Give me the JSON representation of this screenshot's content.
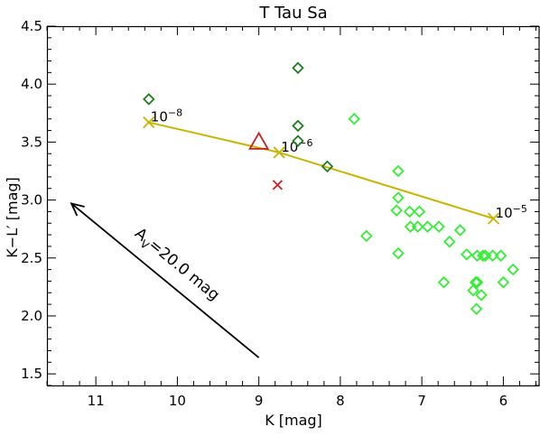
{
  "chart_data": {
    "type": "scatter",
    "title": "T Tau Sa",
    "xlabel": "K [mag]",
    "ylabel": "K−L′ [mag]",
    "xlim": [
      11.6,
      5.55
    ],
    "ylim": [
      1.4,
      4.5
    ],
    "x_axis_inverted": true,
    "x_ticks": [
      11,
      10,
      9,
      8,
      7,
      6
    ],
    "x_tick_labels": [
      "11",
      "10",
      "9",
      "8",
      "7",
      "6"
    ],
    "y_ticks": [
      1.5,
      2.0,
      2.5,
      3.0,
      3.5,
      4.0,
      4.5
    ],
    "y_tick_labels": [
      "1.5",
      "2.0",
      "2.5",
      "3.0",
      "3.5",
      "4.0",
      "4.5"
    ],
    "colors": {
      "dark_green": "#207a20",
      "bright_green": "#33ee33",
      "model_line": "#c8b400",
      "target_red": "#c82020",
      "axes": "#000000"
    },
    "model_track": {
      "x": [
        10.35,
        8.75,
        6.12
      ],
      "y": [
        3.67,
        3.41,
        2.84
      ],
      "labels": [
        {
          "base": "10",
          "exp": "−8"
        },
        {
          "base": "10",
          "exp": "−6"
        },
        {
          "base": "10",
          "exp": "−5"
        }
      ]
    },
    "dark_green_diamonds": {
      "x": [
        10.35,
        8.52,
        8.52,
        8.52,
        8.16
      ],
      "y": [
        3.87,
        4.14,
        3.64,
        3.51,
        3.29
      ]
    },
    "bright_green_diamonds": {
      "x": [
        7.83,
        7.29,
        7.29,
        7.31,
        7.29,
        7.15,
        7.03,
        7.14,
        7.05,
        6.93,
        7.68,
        6.79,
        6.66,
        6.53,
        6.73,
        6.45,
        6.32,
        6.22,
        6.13,
        6.03,
        6.32,
        6.34,
        6.27,
        5.88,
        6.0,
        6.37,
        6.33,
        6.25
      ],
      "y": [
        3.7,
        3.25,
        3.02,
        2.91,
        2.54,
        2.9,
        2.9,
        2.77,
        2.77,
        2.77,
        2.69,
        2.77,
        2.64,
        2.74,
        2.29,
        2.53,
        2.52,
        2.52,
        2.52,
        2.52,
        2.29,
        2.29,
        2.18,
        2.4,
        2.29,
        2.22,
        2.06,
        2.52
      ]
    },
    "target_triangle": {
      "x": 9.0,
      "y": 3.5
    },
    "target_cross": {
      "x": 8.77,
      "y": 3.13
    },
    "extinction_arrow": {
      "label": "A",
      "label_sub": "V",
      "label_rest": "=20.0 mag",
      "from": {
        "x": 9.0,
        "y": 1.64
      },
      "to": {
        "x": 11.3,
        "y": 2.97
      }
    }
  }
}
